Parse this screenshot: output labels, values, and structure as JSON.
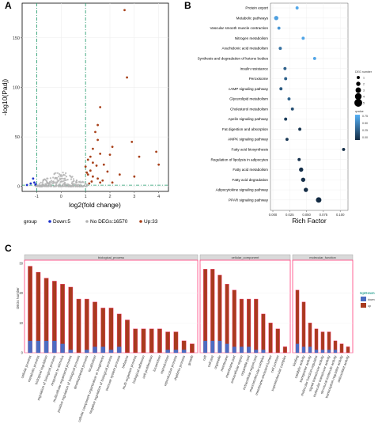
{
  "panels": {
    "a": "A",
    "b": "B",
    "c": "C"
  },
  "colors": {
    "down": "#1f33cc",
    "nodeg": "#b3b3b3",
    "up": "#a8411a",
    "threshold": "#1f9a6a",
    "grid": "#ebebeb",
    "bar_down": "#4b6cc1",
    "bar_up": "#a83a1e",
    "bar_outline": "#ff3d7a",
    "facet_strip": "#d9d9d9",
    "dot_low": "#132b43",
    "dot_high": "#56b1f7"
  },
  "chart_data": [
    {
      "type": "scatter",
      "xlabel": "log2(fold change)",
      "ylabel": "-log10(Padj)",
      "xlim": [
        -1.6,
        4.4
      ],
      "ylim": [
        -5,
        185
      ],
      "x_ticks": [
        "-1",
        "0",
        "1",
        "2",
        "3",
        "4"
      ],
      "y_ticks": [
        "0",
        "50",
        "100",
        "150"
      ],
      "threshold_x": [
        -1,
        1
      ],
      "threshold_y": 1.3,
      "legend": {
        "title": "group",
        "items": [
          {
            "label": "Down:5",
            "color_key": "down"
          },
          {
            "label": "No DEGs:16570",
            "color_key": "nodeg"
          },
          {
            "label": "Up:33",
            "color_key": "up"
          }
        ]
      },
      "series": [
        {
          "name": "Down:5",
          "color_key": "down",
          "points": [
            [
              -1.15,
              8
            ],
            [
              -1.25,
              3
            ],
            [
              -1.4,
              1.5
            ],
            [
              -1.1,
              4
            ],
            [
              -1.05,
              2
            ]
          ]
        },
        {
          "name": "Up:33",
          "color_key": "up",
          "points": [
            [
              2.6,
              178
            ],
            [
              2.7,
              110
            ],
            [
              1.6,
              80
            ],
            [
              1.5,
              62
            ],
            [
              1.4,
              55
            ],
            [
              1.5,
              47
            ],
            [
              1.3,
              38
            ],
            [
              1.6,
              33
            ],
            [
              1.2,
              30
            ],
            [
              1.1,
              27
            ],
            [
              2.1,
              40
            ],
            [
              2.0,
              32
            ],
            [
              2.9,
              45
            ],
            [
              3.2,
              30
            ],
            [
              3.9,
              35
            ],
            [
              4.0,
              22
            ],
            [
              1.9,
              15
            ],
            [
              1.2,
              16
            ],
            [
              1.1,
              12
            ],
            [
              1.3,
              10
            ],
            [
              1.5,
              8
            ],
            [
              1.7,
              6
            ],
            [
              1.25,
              5
            ],
            [
              1.05,
              14
            ],
            [
              2.4,
              12
            ],
            [
              3.0,
              10
            ],
            [
              1.6,
              4
            ],
            [
              1.15,
              3
            ],
            [
              2.1,
              4
            ],
            [
              1.0,
              20
            ],
            [
              1.45,
              21
            ],
            [
              1.75,
              22
            ],
            [
              1.3,
              24
            ]
          ]
        }
      ]
    },
    {
      "type": "scatter",
      "xlabel": "Rich Factor",
      "x_ticks": [
        "0.000",
        "0.025",
        "0.050",
        "0.075",
        "0.100"
      ],
      "xlim": [
        0,
        0.108
      ],
      "categories": [
        "Protein export",
        "Metabolic pathways",
        "Vascular smooth muscle contraction",
        "Nitrogen metabolism",
        "Arachidonic acid metabolism",
        "Synthesis and degradation of ketone bodies",
        "Insulin resistance",
        "Peroxisome",
        "cAMP signaling pathway",
        "Glycerolipid metabolism",
        "Cholesterol metabolism",
        "Apelin signaling pathway",
        "Fat digestion and absorption",
        "AMPK signaling pathway",
        "Fatty acid biosynthesis",
        "Regulation of lipolysis in adipocytes",
        "Fatty acid metabolism",
        "Fatty acid degradation",
        "Adipocytokine signaling pathway",
        "PPAR signaling pathway"
      ],
      "rich_factor": [
        0.036,
        0.005,
        0.009,
        0.045,
        0.011,
        0.062,
        0.018,
        0.019,
        0.012,
        0.024,
        0.029,
        0.019,
        0.04,
        0.021,
        0.105,
        0.039,
        0.042,
        0.045,
        0.049,
        0.068
      ],
      "deg_number": [
        1,
        2,
        1,
        1,
        1,
        1,
        1,
        1,
        1,
        1,
        1,
        1,
        1,
        1,
        1,
        1,
        2,
        2,
        2,
        3
      ],
      "qvalue": [
        0.7,
        0.65,
        0.6,
        0.68,
        0.4,
        0.68,
        0.3,
        0.3,
        0.25,
        0.3,
        0.2,
        0.1,
        0.05,
        0.08,
        0.02,
        0.04,
        0.03,
        0.03,
        0.01,
        0.0
      ],
      "legend": {
        "size_title": "DEG number",
        "size_labels": [
          "1",
          "2",
          "3",
          "4",
          "5"
        ],
        "color_title": "qvalue",
        "color_labels": [
          "0.75",
          "0.50",
          "0.25",
          "0.00"
        ]
      }
    },
    {
      "type": "bar",
      "ylabel": "DEGs Number",
      "y_ticks": [
        "0",
        "10",
        "20",
        "30"
      ],
      "ylim": [
        0,
        31
      ],
      "legend": {
        "title": "UpDown",
        "items": [
          "down",
          "up"
        ]
      },
      "facets": [
        {
          "title": "biological_process",
          "categories": [
            "cellular process",
            "metabolic process",
            "biological regulation",
            "regulation of biological process",
            "response to stimulus",
            "multicellular organismal process",
            "positive regulation of biological process",
            "developmental process",
            "localization",
            "cellular component organization or biogenesis",
            "negative regulation of biological process",
            "immune system process",
            "behavior",
            "multi-organism process",
            "biological adhesion",
            "cell proliferation",
            "locomotion",
            "reproduction",
            "reproductive process",
            "rhythmic process",
            "growth"
          ],
          "up": [
            29,
            27,
            25,
            24,
            23,
            22,
            18,
            18,
            17,
            15,
            15,
            13,
            11,
            8,
            8,
            8,
            8,
            7,
            7,
            4,
            3
          ],
          "down": [
            4,
            4,
            4,
            4,
            3,
            1,
            0,
            1,
            2,
            2,
            1,
            2,
            0,
            0,
            0,
            0,
            0,
            1,
            1,
            1,
            0
          ]
        },
        {
          "title": "cellular_component",
          "categories": [
            "cell",
            "cell part",
            "organelle",
            "membrane",
            "membrane part",
            "extracellular region",
            "organelle part",
            "extracellular region part",
            "macromolecular complex",
            "membrane-enclosed lumen",
            "cell junction",
            "supramolecular complex"
          ],
          "up": [
            28,
            28,
            26,
            23,
            21,
            18,
            18,
            18,
            13,
            10,
            8,
            2
          ],
          "down": [
            4,
            4,
            4,
            3,
            2,
            2,
            2,
            1,
            1,
            0,
            0,
            0
          ]
        },
        {
          "title": "molecular_function",
          "categories": [
            "binding",
            "catalytic activity",
            "transporter activity",
            "molecular function regulator",
            "signal transducer activity",
            "molecular transducer activity",
            "structural molecule activity",
            "transcription regulator activity",
            "antioxidant activity"
          ],
          "up": [
            21,
            17,
            10,
            8,
            7,
            7,
            4,
            3,
            2
          ],
          "down": [
            3,
            2,
            2,
            1,
            1,
            1,
            1,
            0,
            0
          ]
        }
      ]
    }
  ]
}
